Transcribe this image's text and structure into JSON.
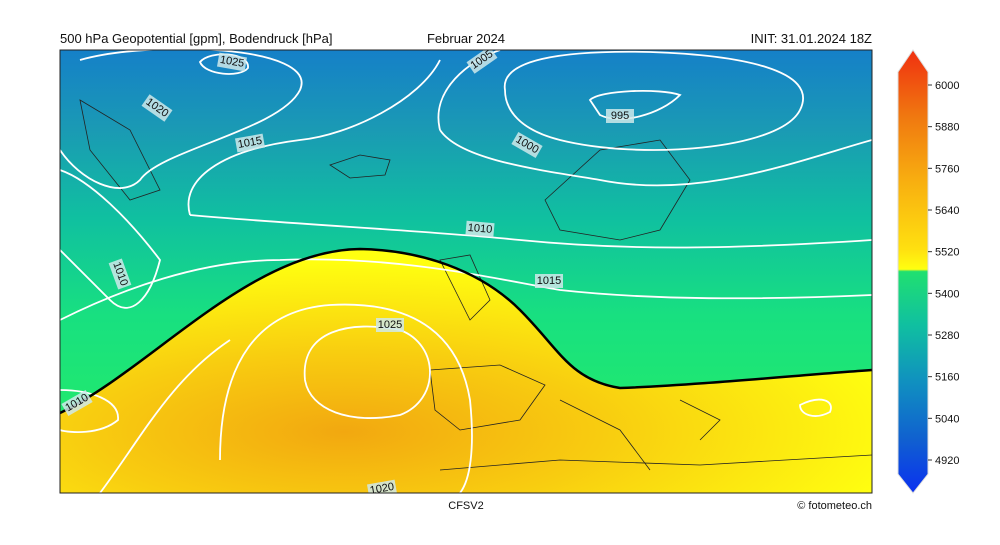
{
  "header": {
    "title": "500 hPa Geopotential [gpm], Bodendruck [hPa]",
    "period": "Februar 2024",
    "init": "INIT: 31.01.2024 18Z"
  },
  "map": {
    "contour_labels": [
      1025,
      1020,
      1015,
      1010,
      1005,
      1000,
      995,
      1010,
      1015,
      1025,
      1010,
      1020
    ]
  },
  "colorbar": {
    "ticks": [
      6000,
      5880,
      5760,
      5640,
      5520,
      5400,
      5280,
      5160,
      5040,
      4920
    ]
  },
  "footer": {
    "model": "CFSV2",
    "credit": "© fotometeo.ch"
  }
}
